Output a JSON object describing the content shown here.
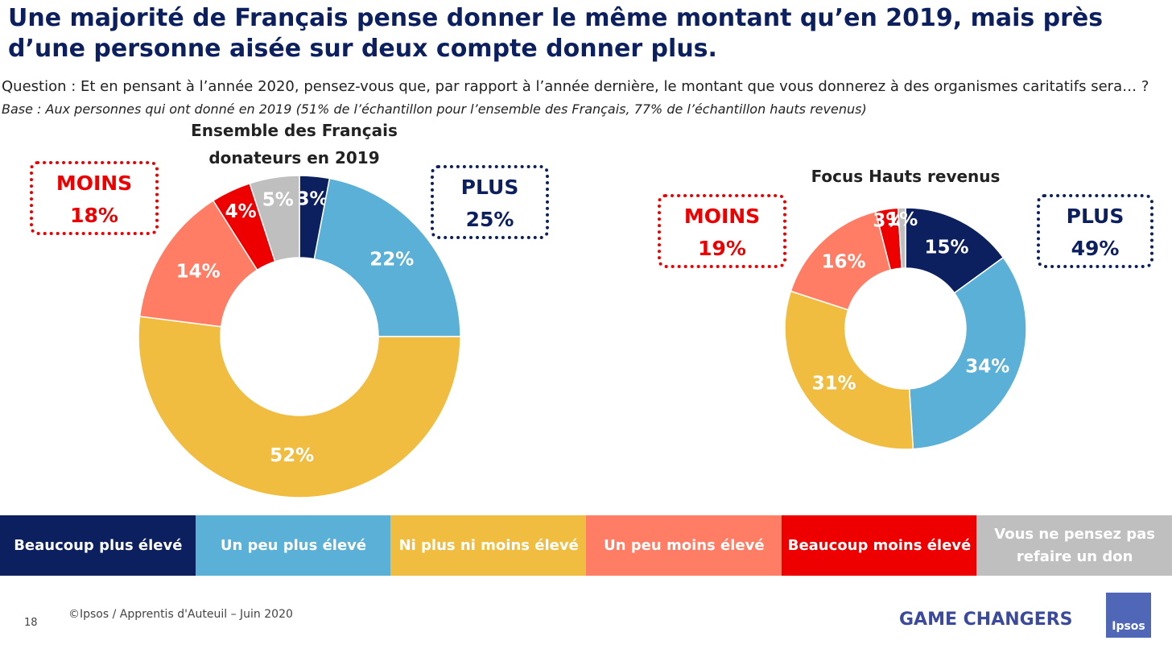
{
  "title": "Une majorité de Français pense donner le même montant qu’en 2019, mais près d’une personne aisée sur deux compte donner plus.",
  "question": "Question : Et en pensant à l’année 2020, pensez-vous que, par rapport à l’année dernière, le montant que vous donnerez à des organismes caritatifs sera… ?",
  "base": "Base : Aux personnes qui ont donné en 2019 (51% de l’échantillon pour l’ensemble des Français, 77% de l’échantillon hauts revenus)",
  "legend": {
    "categories": [
      "Beaucoup plus élevé",
      "Un peu plus élevé",
      "Ni plus ni moins élevé",
      "Un peu moins élevé",
      "Beaucoup moins élevé",
      "Vous ne pensez pas refaire un don"
    ],
    "colors": [
      "#0c1f5e",
      "#5ab0d6",
      "#f0bd40",
      "#ff7d64",
      "#ee0000",
      "#bfbfbf"
    ]
  },
  "chart_data": [
    {
      "type": "donut",
      "title": [
        "Ensemble des Français",
        "donateurs en 2019"
      ],
      "values": [
        3,
        22,
        52,
        14,
        4,
        5
      ],
      "value_labels": [
        "3%",
        "22%",
        "52%",
        "14%",
        "4%",
        "5%"
      ],
      "annotations": [
        {
          "label": "MOINS",
          "value": "18%",
          "color": "#ee0000"
        },
        {
          "label": "PLUS",
          "value": "25%",
          "color": "#0c1f5e"
        }
      ]
    },
    {
      "type": "donut",
      "title": [
        "Focus Hauts revenus"
      ],
      "values": [
        15,
        34,
        31,
        16,
        3,
        1
      ],
      "value_labels": [
        "15%",
        "34%",
        "31%",
        "16%",
        "3%",
        "1%"
      ],
      "annotations": [
        {
          "label": "MOINS",
          "value": "19%",
          "color": "#ee0000"
        },
        {
          "label": "PLUS",
          "value": "49%",
          "color": "#0c1f5e"
        }
      ]
    }
  ],
  "footer": {
    "page": "18",
    "source": "©Ipsos / Apprentis d'Auteuil – Juin 2020",
    "tagline": "GAME CHANGERS",
    "logo": "Ipsos"
  }
}
